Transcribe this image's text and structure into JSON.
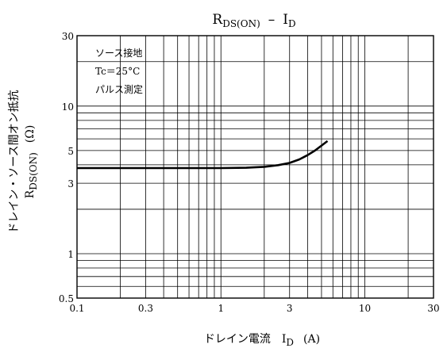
{
  "chart_data": {
    "type": "line",
    "title": {
      "main": "R",
      "main_sub": "DS(ON)",
      "sep": "–",
      "right": "I",
      "right_sub": "D"
    },
    "xlabel": {
      "jp": "ドレイン電流",
      "sym": "I",
      "sym_sub": "D",
      "unit": "(A)"
    },
    "ylabel": {
      "jp": "ドレイン・ソース間オン抵抗",
      "sym": "R",
      "sym_sub": "DS(ON)",
      "unit": "(Ω)"
    },
    "x_scale": "log",
    "y_scale": "log",
    "xlim": [
      0.1,
      30
    ],
    "ylim": [
      0.5,
      30
    ],
    "x_ticks": [
      0.1,
      0.3,
      1,
      3,
      10,
      30
    ],
    "x_tick_labels": [
      "0.1",
      "0.3",
      "1",
      "3",
      "10",
      "30"
    ],
    "y_ticks": [
      0.5,
      1,
      3,
      5,
      10,
      30
    ],
    "y_tick_labels": [
      "0.5",
      "1",
      "3",
      "5",
      "10",
      "30"
    ],
    "grid": true,
    "annotations": [
      "ソース接地",
      "Tc＝25°C",
      "パルス測定"
    ],
    "series": [
      {
        "x": [
          0.1,
          0.2,
          0.5,
          1.0,
          1.5,
          2.0,
          2.5,
          3.0,
          3.5,
          4.0,
          4.5,
          5.0,
          5.5
        ],
        "y": [
          3.8,
          3.8,
          3.8,
          3.8,
          3.82,
          3.88,
          3.98,
          4.12,
          4.35,
          4.65,
          5.0,
          5.4,
          5.8
        ]
      }
    ]
  }
}
